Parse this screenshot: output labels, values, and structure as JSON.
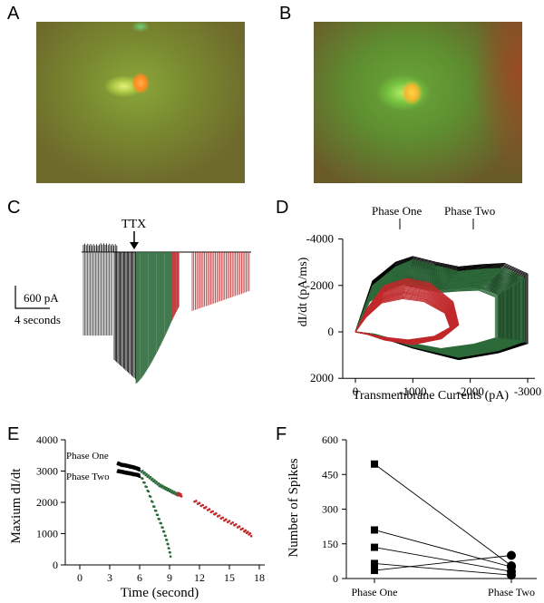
{
  "panels": {
    "a": {
      "letter": "A"
    },
    "b": {
      "letter": "B"
    },
    "c": {
      "letter": "C",
      "annotation": "TTX",
      "scale_current": "600 pA",
      "scale_time": "4 seconds"
    },
    "d": {
      "letter": "D"
    },
    "e": {
      "letter": "E"
    },
    "f": {
      "letter": "F"
    }
  },
  "colors": {
    "black": "#000000",
    "green": "#2d6a3a",
    "red": "#c0282a",
    "micro_bg": "#6f7a2e"
  },
  "chart_data": [
    {
      "panel": "D",
      "type": "line",
      "xlabel": "Transmembrane Currents (pA)",
      "ylabel": "dI/dt (pA/ms)",
      "x_ticks": [
        "0",
        "-1000",
        "-2000",
        "-3000"
      ],
      "y_ticks": [
        "-4000",
        "-2000",
        "0",
        "2000"
      ],
      "xlim": [
        0,
        -3300
      ],
      "ylim": [
        2000,
        -4000
      ],
      "annotations": [
        "Phase One",
        "Phase Two"
      ],
      "series": [
        {
          "color": "#000000",
          "x": [
            0,
            -300,
            -700,
            -1000,
            -1400,
            -1800,
            -2200,
            -2600,
            -3000,
            -3000,
            -2500,
            -1800,
            -1000,
            -400,
            0
          ],
          "y": [
            0,
            -2200,
            -3000,
            -3250,
            -3000,
            -2800,
            -2900,
            -2950,
            -2500,
            500,
            900,
            1200,
            700,
            200,
            0
          ]
        },
        {
          "color": "#2d6a3a",
          "x": [
            0,
            -300,
            -700,
            -1000,
            -1400,
            -1800,
            -2200,
            -2600,
            -2950,
            -2950,
            -2500,
            -1800,
            -1000,
            -400,
            0
          ],
          "y": [
            0,
            -2000,
            -2800,
            -3100,
            -2850,
            -2600,
            -2700,
            -2750,
            -2300,
            400,
            800,
            1100,
            650,
            150,
            0
          ]
        },
        {
          "color": "#c0282a",
          "x": [
            0,
            -200,
            -500,
            -900,
            -1300,
            -1700,
            -1800,
            -1500,
            -1000,
            -500,
            -200,
            0
          ],
          "y": [
            0,
            -1000,
            -2000,
            -2300,
            -2100,
            -1300,
            -300,
            300,
            550,
            350,
            100,
            0
          ]
        }
      ]
    },
    {
      "panel": "E",
      "type": "scatter",
      "xlabel": "Time (second)",
      "ylabel": "Maxium dI/dt",
      "x_ticks": [
        "0",
        "3",
        "6",
        "9",
        "12",
        "15",
        "18"
      ],
      "y_ticks": [
        "0",
        "1000",
        "2000",
        "3000",
        "4000"
      ],
      "xlim": [
        -1.5,
        18.5
      ],
      "ylim": [
        0,
        4000
      ],
      "labels": [
        "Phase One",
        "Phase Two"
      ],
      "series": [
        {
          "color": "#000000",
          "x": [
            3.8,
            4.2,
            4.6,
            5.0,
            5.4,
            5.8,
            6.0
          ],
          "y": [
            3250,
            3200,
            3180,
            3150,
            3120,
            3080,
            3050
          ]
        },
        {
          "color": "#000000",
          "x": [
            3.8,
            4.2,
            4.6,
            5.0,
            5.4,
            5.8,
            6.0
          ],
          "y": [
            3000,
            2980,
            2950,
            2930,
            2900,
            2880,
            2850
          ]
        },
        {
          "color": "#2d6a3a",
          "x": [
            6.2,
            6.8,
            7.4,
            8.0,
            8.6,
            9.2,
            9.8
          ],
          "y": [
            3000,
            2850,
            2700,
            2550,
            2450,
            2350,
            2250
          ]
        },
        {
          "color": "#2d6a3a",
          "x": [
            6.2,
            6.8,
            7.4,
            7.9,
            8.4,
            8.8,
            9.1
          ],
          "y": [
            2800,
            2400,
            1900,
            1500,
            1100,
            700,
            300
          ]
        },
        {
          "color": "#c0282a",
          "x": [
            9.8,
            10.2
          ],
          "y": [
            2280,
            2220
          ]
        },
        {
          "color": "#c0282a",
          "x": [
            11.5,
            12.5,
            13.5,
            14.5,
            15.5,
            16.5,
            17.2
          ],
          "y": [
            2050,
            1850,
            1650,
            1450,
            1300,
            1100,
            950
          ]
        }
      ]
    },
    {
      "panel": "F",
      "type": "line",
      "ylabel": "Number of Spikes",
      "categories": [
        "Phase One",
        "Phase Two"
      ],
      "y_ticks": [
        "0",
        "150",
        "300",
        "450",
        "600"
      ],
      "ylim": [
        0,
        600
      ],
      "series": [
        {
          "values": [
            495,
            55
          ]
        },
        {
          "values": [
            210,
            50
          ]
        },
        {
          "values": [
            135,
            30
          ]
        },
        {
          "values": [
            65,
            15
          ]
        },
        {
          "values": [
            35,
            100
          ]
        }
      ]
    }
  ]
}
